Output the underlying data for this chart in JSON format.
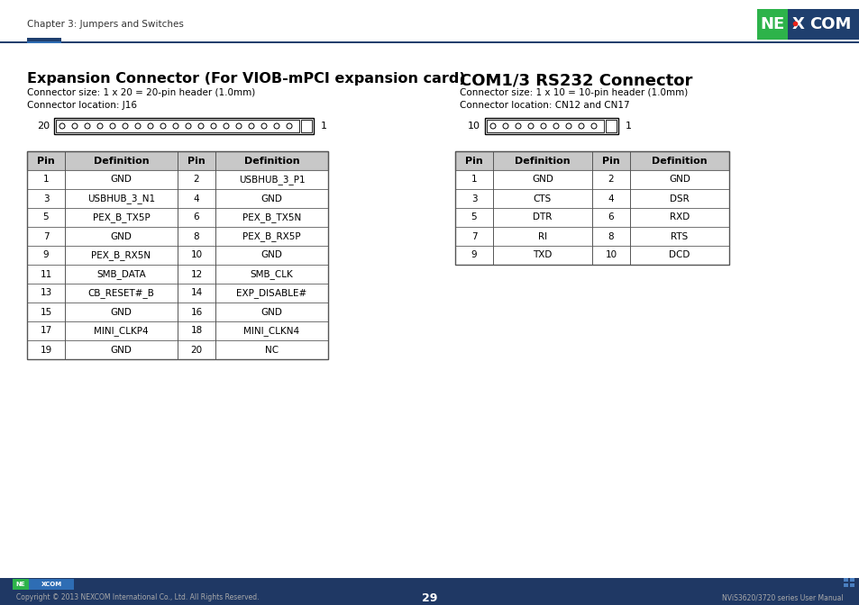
{
  "page_header_left": "Chapter 3: Jumpers and Switches",
  "page_number": "29",
  "footer_left": "Copyright © 2013 NEXCOM International Co., Ltd. All Rights Reserved.",
  "footer_right": "NViS3620/3720 series User Manual",
  "section1_title": "Expansion Connector (For VIOB-mPCI expansion card)",
  "section1_sub1": "Connector size: 1 x 20 = 20-pin header (1.0mm)",
  "section1_sub2": "Connector location: J16",
  "section1_pin_left": "20",
  "section1_pin_right": "1",
  "section1_num_pins": 20,
  "section2_title": "COM1/3 RS232 Connector",
  "section2_sub1": "Connector size: 1 x 10 = 10-pin header (1.0mm)",
  "section2_sub2": "Connector location: CN12 and CN17",
  "section2_pin_left": "10",
  "section2_pin_right": "1",
  "section2_num_pins": 10,
  "table1_headers": [
    "Pin",
    "Definition",
    "Pin",
    "Definition"
  ],
  "table1_rows": [
    [
      "1",
      "GND",
      "2",
      "USBHUB_3_P1"
    ],
    [
      "3",
      "USBHUB_3_N1",
      "4",
      "GND"
    ],
    [
      "5",
      "PEX_B_TX5P",
      "6",
      "PEX_B_TX5N"
    ],
    [
      "7",
      "GND",
      "8",
      "PEX_B_RX5P"
    ],
    [
      "9",
      "PEX_B_RX5N",
      "10",
      "GND"
    ],
    [
      "11",
      "SMB_DATA",
      "12",
      "SMB_CLK"
    ],
    [
      "13",
      "CB_RESET#_B",
      "14",
      "EXP_DISABLE#"
    ],
    [
      "15",
      "GND",
      "16",
      "GND"
    ],
    [
      "17",
      "MINI_CLKP4",
      "18",
      "MINI_CLKN4"
    ],
    [
      "19",
      "GND",
      "20",
      "NC"
    ]
  ],
  "table2_headers": [
    "Pin",
    "Definition",
    "Pin",
    "Definition"
  ],
  "table2_rows": [
    [
      "1",
      "GND",
      "2",
      "GND"
    ],
    [
      "3",
      "CTS",
      "4",
      "DSR"
    ],
    [
      "5",
      "DTR",
      "6",
      "RXD"
    ],
    [
      "7",
      "RI",
      "8",
      "RTS"
    ],
    [
      "9",
      "TXD",
      "10",
      "DCD"
    ]
  ],
  "header_line_color": "#1f3f6e",
  "header_accent_color": "#1f3f6e",
  "logo_green": "#2db34a",
  "logo_blue": "#1f3f6e",
  "logo_red": "#e8231a",
  "table_header_bg": "#c8c8c8",
  "table_border": "#555555",
  "bg_color": "#ffffff",
  "text_color": "#000000",
  "footer_bar_color": "#1f3864",
  "footer_text_color": "#cccccc"
}
